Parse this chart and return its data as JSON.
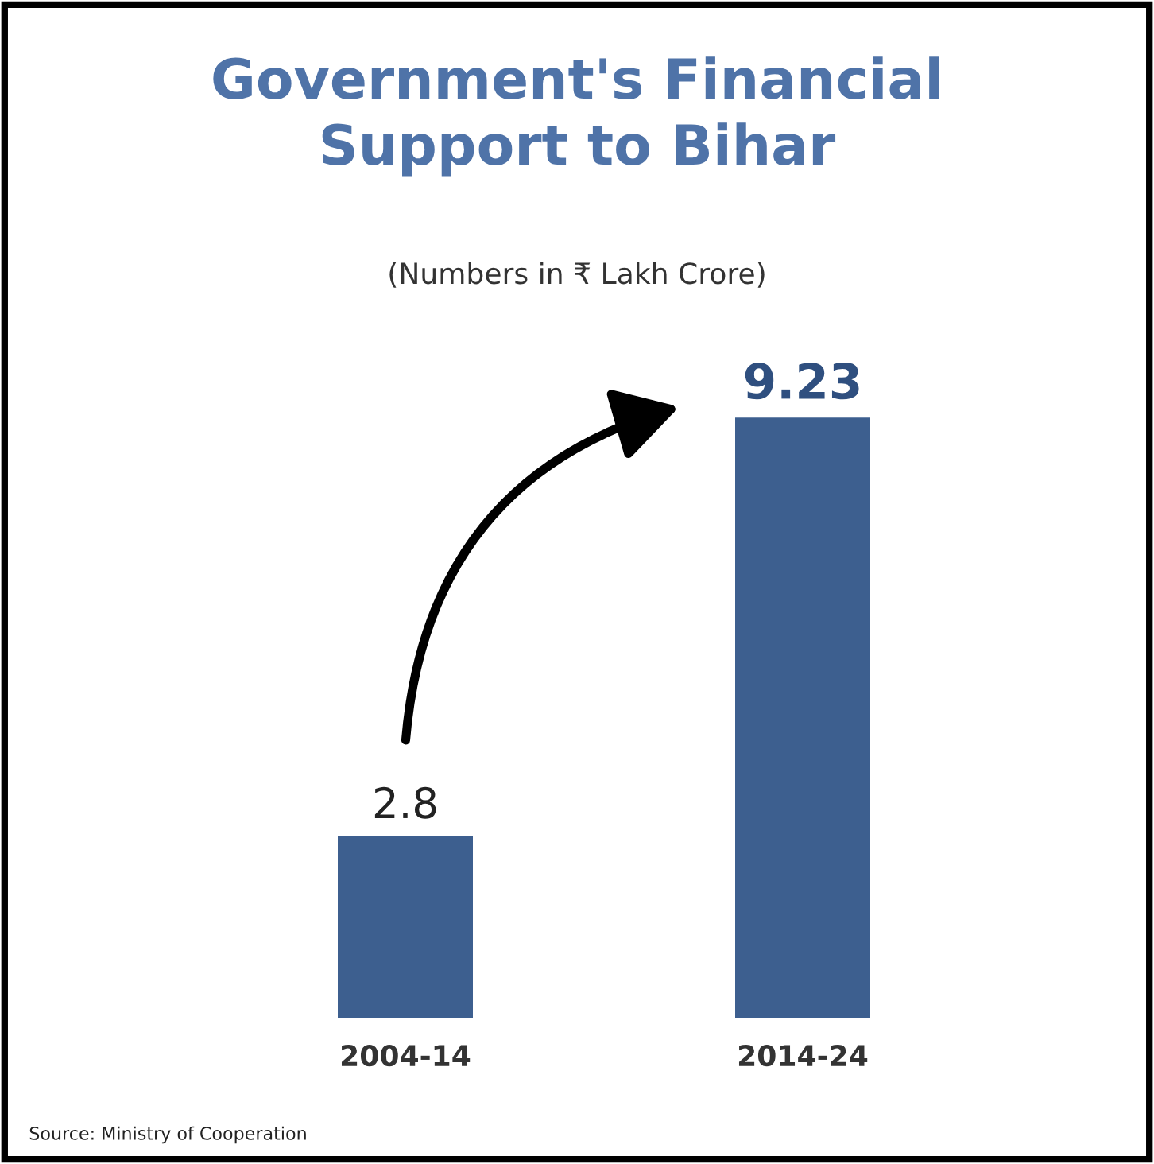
{
  "chart_data": {
    "type": "bar",
    "title": "Government's Financial\nSupport to Bihar",
    "subtitle": "(Numbers in ₹ Lakh Crore)",
    "categories": [
      "2004-14",
      "2014-24"
    ],
    "values": [
      2.8,
      9.23
    ],
    "color": "#3d5f8f",
    "data_labels": true,
    "annotations": [
      "Source: Ministry of Cooperation"
    ]
  }
}
